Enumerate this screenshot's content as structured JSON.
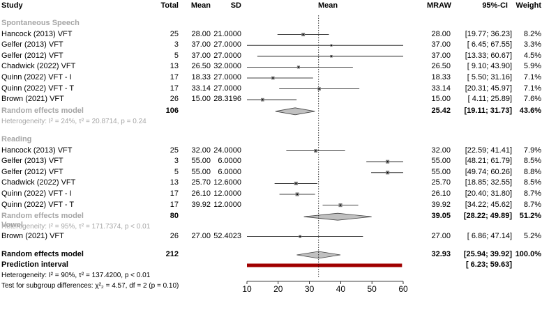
{
  "columns": {
    "study": "Study",
    "total": "Total",
    "mean": "Mean",
    "sd": "SD",
    "plot": "Mean",
    "mraw": "MRAW",
    "ci": "95%-CI",
    "weight": "Weight"
  },
  "groups": [
    {
      "label": "Spontaneous Speech",
      "studies": [
        {
          "name": "Hancock (2013) VFT",
          "total": "25",
          "mean": "28.00",
          "sd": "21.0000",
          "mraw": "28.00",
          "ci": "[19.77; 36.23]",
          "weight": "8.2%",
          "est": 28.0,
          "lo": 19.77,
          "hi": 36.23
        },
        {
          "name": "Gelfer (2013) VFT",
          "total": "3",
          "mean": "37.00",
          "sd": "27.0000",
          "mraw": "37.00",
          "ci": "[ 6.45; 67.55]",
          "weight": "3.3%",
          "est": 37.0,
          "lo": 6.45,
          "hi": 67.55
        },
        {
          "name": "Gelfer (2012) VFT",
          "total": "5",
          "mean": "37.00",
          "sd": "27.0000",
          "mraw": "37.00",
          "ci": "[13.33; 60.67]",
          "weight": "4.5%",
          "est": 37.0,
          "lo": 13.33,
          "hi": 60.67
        },
        {
          "name": "Chadwick (2022) VFT",
          "total": "13",
          "mean": "26.50",
          "sd": "32.0000",
          "mraw": "26.50",
          "ci": "[ 9.10; 43.90]",
          "weight": "5.9%",
          "est": 26.5,
          "lo": 9.1,
          "hi": 43.9
        },
        {
          "name": "Quinn (2022) VFT - I",
          "total": "17",
          "mean": "18.33",
          "sd": "27.0000",
          "mraw": "18.33",
          "ci": "[ 5.50; 31.16]",
          "weight": "7.1%",
          "est": 18.33,
          "lo": 5.5,
          "hi": 31.16
        },
        {
          "name": "Quinn (2022) VFT - T",
          "total": "17",
          "mean": "33.14",
          "sd": "27.0000",
          "mraw": "33.14",
          "ci": "[20.31; 45.97]",
          "weight": "7.1%",
          "est": 33.14,
          "lo": 20.31,
          "hi": 45.97
        },
        {
          "name": "Brown (2021) VFT",
          "total": "26",
          "mean": "15.00",
          "sd": "28.3196",
          "mraw": "15.00",
          "ci": "[ 4.11; 25.89]",
          "weight": "7.6%",
          "est": 15.0,
          "lo": 4.11,
          "hi": 25.89
        }
      ],
      "model": {
        "label": "Random effects model",
        "total": "106",
        "mraw": "25.42",
        "ci": "[19.11; 31.73]",
        "weight": "43.6%",
        "est": 25.42,
        "lo": 19.11,
        "hi": 31.73
      },
      "heterogeneity": "Heterogeneity: I² = 24%, τ² = 20.8714, p = 0.24"
    },
    {
      "label": "Reading",
      "studies": [
        {
          "name": "Hancock (2013) VFT",
          "total": "25",
          "mean": "32.00",
          "sd": "24.0000",
          "mraw": "32.00",
          "ci": "[22.59; 41.41]",
          "weight": "7.9%",
          "est": 32.0,
          "lo": 22.59,
          "hi": 41.41
        },
        {
          "name": "Gelfer (2013) VFT",
          "total": "3",
          "mean": "55.00",
          "sd": "6.0000",
          "mraw": "55.00",
          "ci": "[48.21; 61.79]",
          "weight": "8.5%",
          "est": 55.0,
          "lo": 48.21,
          "hi": 61.79
        },
        {
          "name": "Gelfer (2012) VFT",
          "total": "5",
          "mean": "55.00",
          "sd": "6.0000",
          "mraw": "55.00",
          "ci": "[49.74; 60.26]",
          "weight": "8.8%",
          "est": 55.0,
          "lo": 49.74,
          "hi": 60.26
        },
        {
          "name": "Chadwick (2022) VFT",
          "total": "13",
          "mean": "25.70",
          "sd": "12.6000",
          "mraw": "25.70",
          "ci": "[18.85; 32.55]",
          "weight": "8.5%",
          "est": 25.7,
          "lo": 18.85,
          "hi": 32.55
        },
        {
          "name": "Quinn (2022) VFT - I",
          "total": "17",
          "mean": "26.10",
          "sd": "12.0000",
          "mraw": "26.10",
          "ci": "[20.40; 31.80]",
          "weight": "8.7%",
          "est": 26.1,
          "lo": 20.4,
          "hi": 31.8
        },
        {
          "name": "Quinn (2022) VFT - T",
          "total": "17",
          "mean": "39.92",
          "sd": "12.0000",
          "mraw": "39.92",
          "ci": "[34.22; 45.62]",
          "weight": "8.7%",
          "est": 39.92,
          "lo": 34.22,
          "hi": 45.62
        }
      ],
      "model": {
        "label": "Random effects model",
        "total": "80",
        "mraw": "39.05",
        "ci": "[28.22; 49.89]",
        "weight": "51.2%",
        "est": 39.05,
        "lo": 28.22,
        "hi": 49.89
      },
      "heterogeneity": "Heterogeneity: I² = 95%, τ² = 171.7374, p < 0.01"
    },
    {
      "label": "Vowel",
      "studies": [
        {
          "name": "Brown (2021) VFT",
          "total": "26",
          "mean": "27.00",
          "sd": "52.4023",
          "mraw": "27.00",
          "ci": "[ 6.86; 47.14]",
          "weight": "5.2%",
          "est": 27.0,
          "lo": 6.86,
          "hi": 47.14
        }
      ]
    }
  ],
  "overall": {
    "label": "Random effects model",
    "total": "212",
    "mraw": "32.93",
    "ci": "[25.94; 39.92]",
    "weight": "100.0%",
    "est": 32.93,
    "lo": 25.94,
    "hi": 39.92
  },
  "prediction": {
    "label": "Prediction interval",
    "ci": "[ 6.23; 59.63]",
    "lo": 6.23,
    "hi": 59.63
  },
  "footer": {
    "heterogeneity": "Heterogeneity: I² = 90%, τ² = 137.4200, p < 0.01",
    "subgroup": "Test for subgroup differences: χ²₂ = 4.57, df = 2 (p = 0.10)"
  },
  "chart_data": {
    "type": "forest",
    "xlabel": "",
    "xlim": [
      10,
      60
    ],
    "xticks": [
      10,
      20,
      30,
      40,
      50,
      60
    ],
    "reference_line": 32.93,
    "colors": {
      "square": "#808080",
      "ci_line": "#000000",
      "diamond_fill": "#c0c0c0",
      "prediction": "#a00000",
      "subgroup_text": "#a6a6a6"
    }
  }
}
